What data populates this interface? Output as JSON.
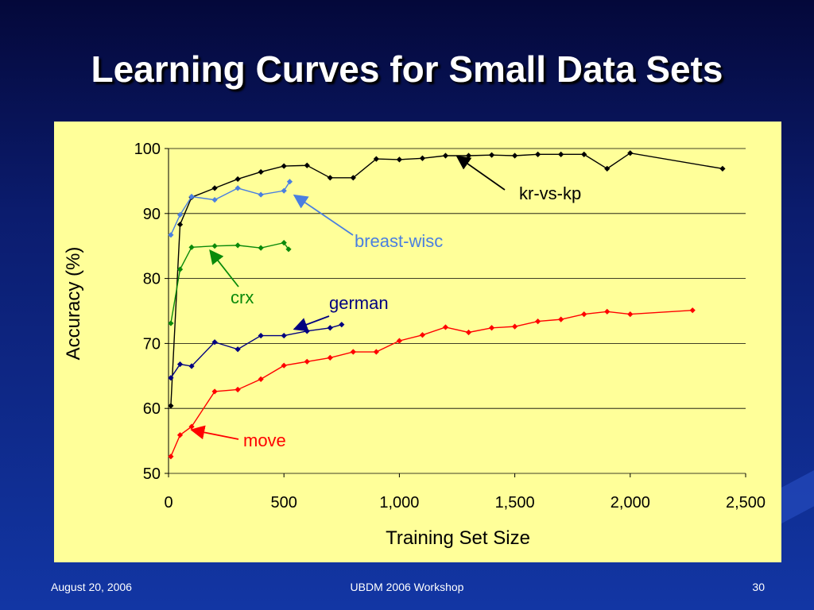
{
  "slide": {
    "title": "Learning Curves for Small Data Sets",
    "footer_left": "August 20, 2006",
    "footer_center": "UBDM 2006 Workshop",
    "footer_right": "30"
  },
  "colors": {
    "background": "#0b1c6e",
    "chart_background": "#ffff99",
    "title": "#ffffff"
  },
  "chart_data": {
    "type": "line",
    "xlabel": "Training Set Size",
    "ylabel": "Accuracy (%)",
    "xlim": [
      0,
      2500
    ],
    "ylim": [
      50,
      100
    ],
    "x_ticks": [
      0,
      500,
      1000,
      1500,
      2000,
      2500
    ],
    "x_tick_labels": [
      "0",
      "500",
      "1,000",
      "1,500",
      "2,000",
      "2,500"
    ],
    "y_ticks": [
      50,
      60,
      70,
      80,
      90,
      100
    ],
    "y_tick_labels": [
      "50",
      "60",
      "70",
      "80",
      "90",
      "100"
    ],
    "grid": "horizontal",
    "series": [
      {
        "name": "kr-vs-kp",
        "color": "#000000",
        "x": [
          10,
          50,
          100,
          200,
          300,
          400,
          500,
          600,
          700,
          800,
          900,
          1000,
          1100,
          1200,
          1300,
          1400,
          1500,
          1600,
          1700,
          1800,
          1900,
          2000,
          2400
        ],
        "y": [
          60.4,
          88.3,
          92.5,
          93.9,
          95.3,
          96.4,
          97.3,
          97.4,
          95.5,
          95.5,
          98.4,
          98.3,
          98.5,
          98.9,
          98.9,
          99.0,
          98.9,
          99.1,
          99.1,
          99.1,
          96.9,
          99.3,
          96.9
        ],
        "label": "kr-vs-kp"
      },
      {
        "name": "breast-wisc",
        "color": "#4a7fe0",
        "x": [
          10,
          50,
          100,
          200,
          300,
          400,
          500,
          525
        ],
        "y": [
          86.7,
          89.8,
          92.6,
          92.1,
          93.9,
          92.9,
          93.5,
          94.9
        ],
        "label": "breast-wisc"
      },
      {
        "name": "crx",
        "color": "#0a8a0a",
        "x": [
          10,
          50,
          100,
          200,
          300,
          400,
          500,
          520
        ],
        "y": [
          73.1,
          81.4,
          84.8,
          85.0,
          85.1,
          84.7,
          85.5,
          84.5
        ],
        "label": "crx"
      },
      {
        "name": "german",
        "color": "#000080",
        "x": [
          10,
          50,
          100,
          200,
          300,
          400,
          500,
          600,
          700,
          750
        ],
        "y": [
          64.7,
          66.8,
          66.5,
          70.2,
          69.1,
          71.2,
          71.2,
          71.9,
          72.4,
          72.9
        ],
        "label": "german"
      },
      {
        "name": "move",
        "color": "#ff0000",
        "x": [
          10,
          50,
          100,
          200,
          300,
          400,
          500,
          600,
          700,
          800,
          900,
          1000,
          1100,
          1200,
          1300,
          1400,
          1500,
          1600,
          1700,
          1800,
          1900,
          2000,
          2270
        ],
        "y": [
          52.6,
          55.9,
          57.2,
          62.6,
          62.9,
          64.5,
          66.6,
          67.2,
          67.8,
          68.7,
          68.7,
          70.4,
          71.3,
          72.5,
          71.7,
          72.4,
          72.6,
          73.4,
          73.7,
          74.5,
          74.9,
          74.5,
          75.1
        ],
        "label": "move"
      }
    ],
    "annotations": [
      "kr-vs-kp",
      "breast-wisc",
      "crx",
      "german",
      "move"
    ]
  }
}
